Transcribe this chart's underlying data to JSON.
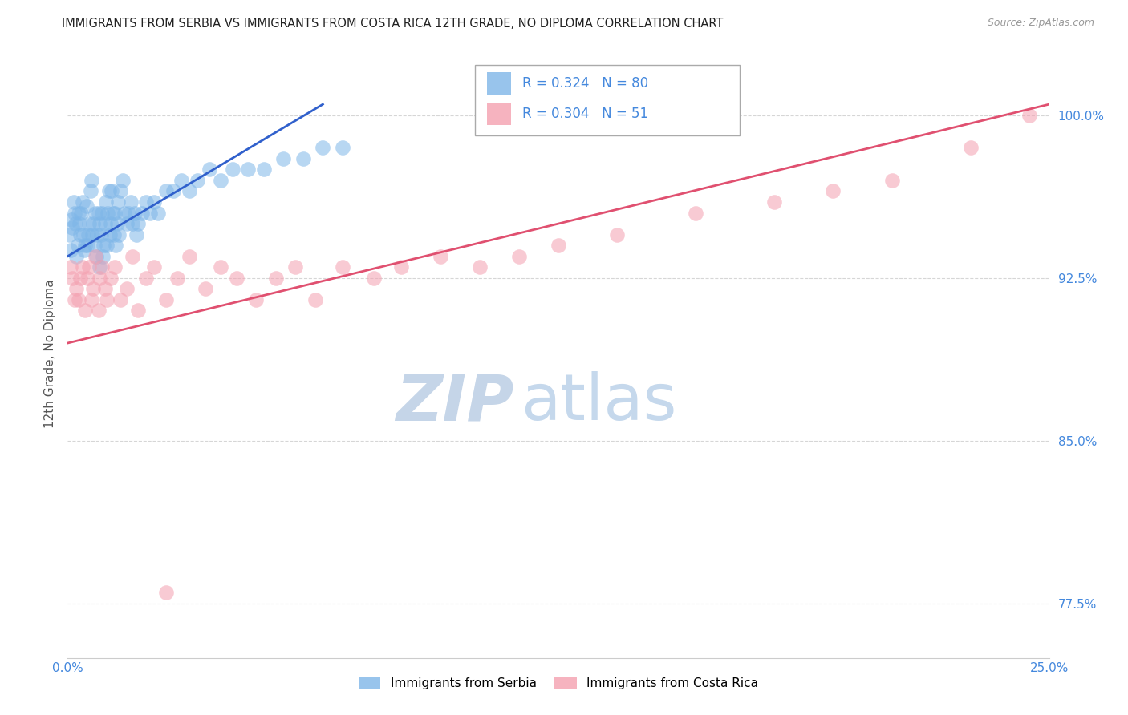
{
  "title": "IMMIGRANTS FROM SERBIA VS IMMIGRANTS FROM COSTA RICA 12TH GRADE, NO DIPLOMA CORRELATION CHART",
  "source": "Source: ZipAtlas.com",
  "ylabel": "12th Grade, No Diploma",
  "legend_label_1": "Immigrants from Serbia",
  "legend_label_2": "Immigrants from Costa Rica",
  "r1": 0.324,
  "n1": 80,
  "r2": 0.304,
  "n2": 51,
  "color_serbia": "#7EB6E8",
  "color_costa_rica": "#F4A0B0",
  "line_color_serbia": "#3060CC",
  "line_color_costa_rica": "#E05070",
  "xlim": [
    0.0,
    25.0
  ],
  "ylim": [
    75.0,
    103.0
  ],
  "ytick_values": [
    77.5,
    85.0,
    92.5,
    100.0
  ],
  "ytick_labels": [
    "77.5%",
    "85.0%",
    "92.5%",
    "100.0%"
  ],
  "xtick_values": [
    0.0,
    25.0
  ],
  "xtick_labels": [
    "0.0%",
    "25.0%"
  ],
  "tick_color": "#4488DD",
  "watermark_zip_color": "#C8D8EE",
  "watermark_atlas_color": "#B8CCE8",
  "serbia_x": [
    0.05,
    0.08,
    0.1,
    0.12,
    0.15,
    0.18,
    0.2,
    0.22,
    0.25,
    0.28,
    0.3,
    0.32,
    0.35,
    0.38,
    0.4,
    0.42,
    0.45,
    0.48,
    0.5,
    0.52,
    0.55,
    0.58,
    0.6,
    0.62,
    0.65,
    0.68,
    0.7,
    0.72,
    0.75,
    0.78,
    0.8,
    0.82,
    0.85,
    0.88,
    0.9,
    0.92,
    0.95,
    0.98,
    1.0,
    1.02,
    1.05,
    1.08,
    1.1,
    1.12,
    1.15,
    1.18,
    1.2,
    1.22,
    1.25,
    1.28,
    1.3,
    1.35,
    1.4,
    1.45,
    1.5,
    1.55,
    1.6,
    1.65,
    1.7,
    1.75,
    1.8,
    1.9,
    2.0,
    2.1,
    2.2,
    2.3,
    2.5,
    2.7,
    2.9,
    3.1,
    3.3,
    3.6,
    3.9,
    4.2,
    4.6,
    5.0,
    5.5,
    6.0,
    6.5,
    7.0
  ],
  "serbia_y": [
    94.5,
    93.8,
    95.2,
    94.8,
    96.0,
    95.5,
    95.0,
    93.5,
    94.0,
    95.5,
    95.0,
    94.5,
    95.5,
    96.0,
    94.5,
    93.8,
    94.0,
    95.8,
    94.0,
    94.5,
    95.0,
    96.5,
    97.0,
    94.5,
    95.0,
    94.0,
    95.5,
    93.5,
    94.5,
    95.5,
    95.0,
    93.0,
    94.5,
    95.5,
    93.5,
    94.0,
    95.0,
    96.0,
    94.0,
    95.5,
    96.5,
    94.5,
    95.0,
    96.5,
    95.5,
    94.5,
    95.5,
    94.0,
    95.0,
    96.0,
    94.5,
    96.5,
    97.0,
    95.5,
    95.0,
    95.5,
    96.0,
    95.0,
    95.5,
    94.5,
    95.0,
    95.5,
    96.0,
    95.5,
    96.0,
    95.5,
    96.5,
    96.5,
    97.0,
    96.5,
    97.0,
    97.5,
    97.0,
    97.5,
    97.5,
    97.5,
    98.0,
    98.0,
    98.5,
    98.5
  ],
  "costarica_x": [
    0.08,
    0.12,
    0.18,
    0.22,
    0.28,
    0.32,
    0.38,
    0.45,
    0.5,
    0.55,
    0.6,
    0.65,
    0.7,
    0.78,
    0.82,
    0.88,
    0.95,
    1.0,
    1.1,
    1.2,
    1.35,
    1.5,
    1.65,
    1.8,
    2.0,
    2.2,
    2.5,
    2.8,
    3.1,
    3.5,
    3.9,
    4.3,
    4.8,
    5.3,
    5.8,
    6.3,
    7.0,
    7.8,
    8.5,
    9.5,
    10.5,
    11.5,
    12.5,
    14.0,
    16.0,
    18.0,
    19.5,
    21.0,
    23.0,
    24.5,
    2.5
  ],
  "costarica_y": [
    93.0,
    92.5,
    91.5,
    92.0,
    91.5,
    92.5,
    93.0,
    91.0,
    92.5,
    93.0,
    91.5,
    92.0,
    93.5,
    91.0,
    92.5,
    93.0,
    92.0,
    91.5,
    92.5,
    93.0,
    91.5,
    92.0,
    93.5,
    91.0,
    92.5,
    93.0,
    91.5,
    92.5,
    93.5,
    92.0,
    93.0,
    92.5,
    91.5,
    92.5,
    93.0,
    91.5,
    93.0,
    92.5,
    93.0,
    93.5,
    93.0,
    93.5,
    94.0,
    94.5,
    95.5,
    96.0,
    96.5,
    97.0,
    98.5,
    100.0,
    78.0
  ]
}
